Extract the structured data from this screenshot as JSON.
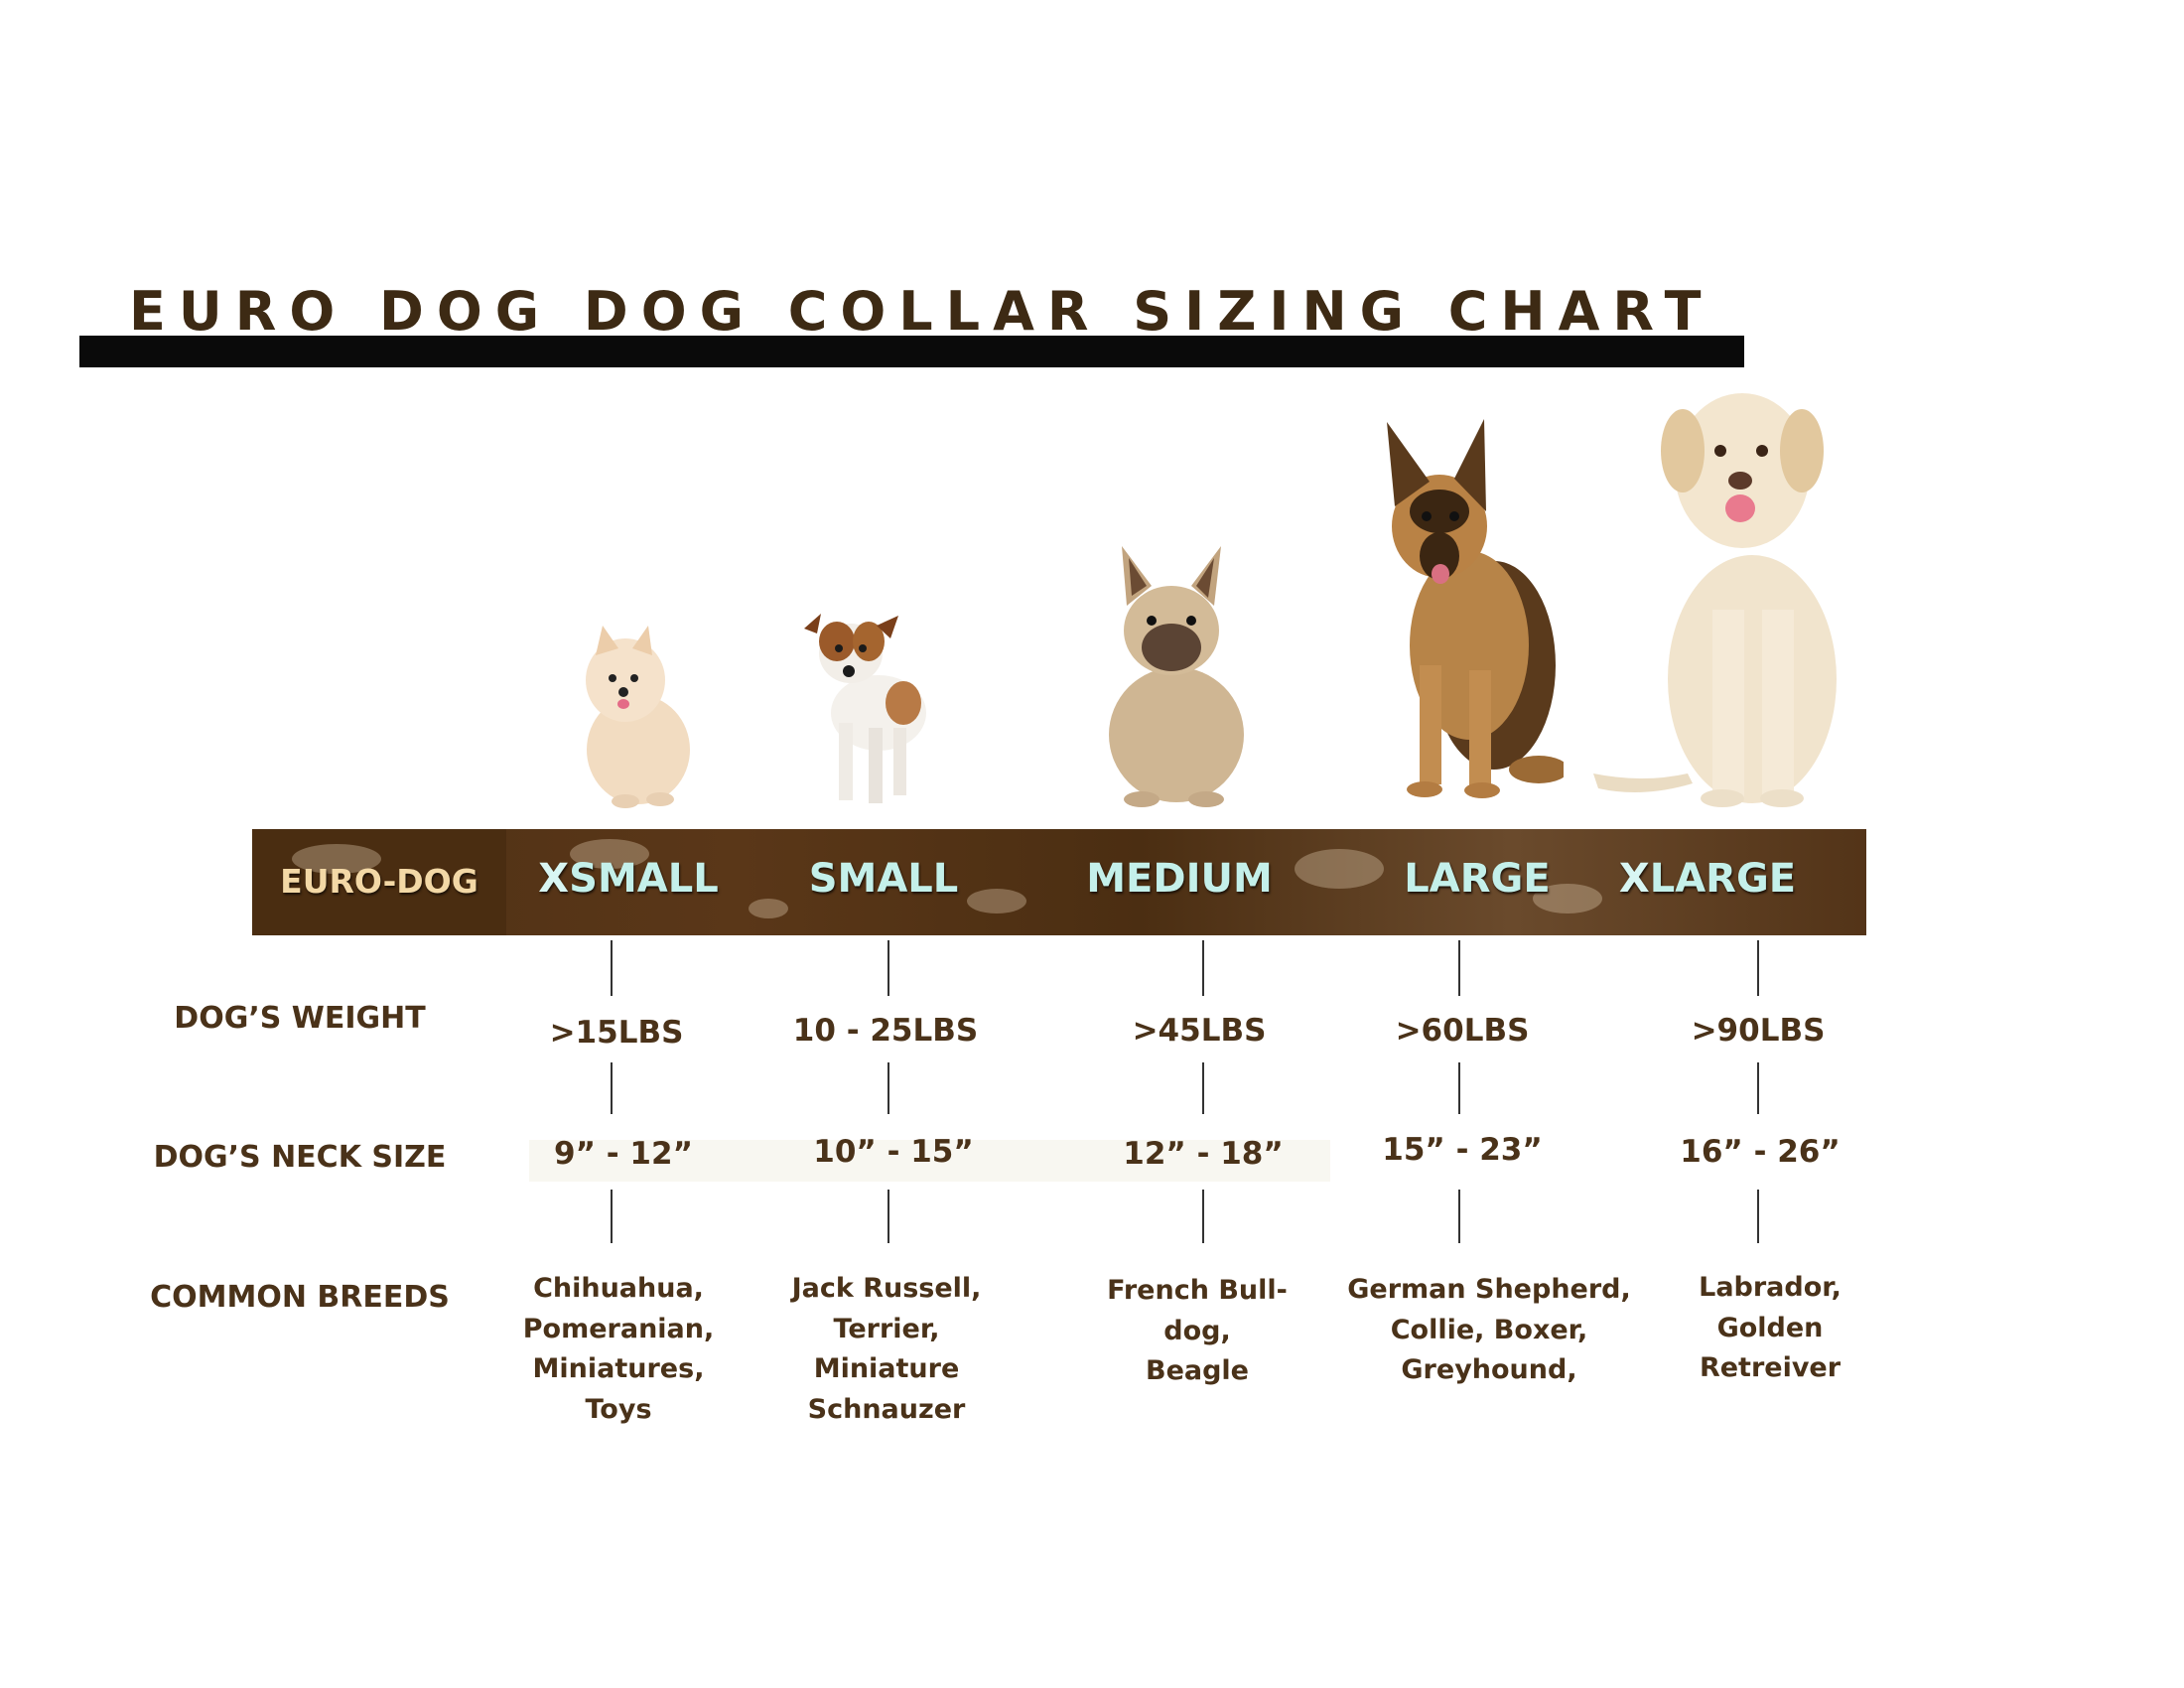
{
  "title": "EURO DOG DOG COLLAR SIZING CHART",
  "band": {
    "brand": "EURO-DOG",
    "sizes": [
      {
        "prefix": "X",
        "label": "SMALL"
      },
      {
        "prefix": "",
        "label": "SMALL"
      },
      {
        "prefix": "",
        "label": "MEDIUM"
      },
      {
        "prefix": "",
        "label": "LARGE"
      },
      {
        "prefix": "X",
        "label": "LARGE"
      }
    ]
  },
  "rows": {
    "weight": {
      "label": "DOG’S WEIGHT",
      "values": [
        ">15LBS",
        "10 - 25LBS",
        ">45LBS",
        ">60LBS",
        ">90LBS"
      ]
    },
    "neck": {
      "label": "DOG’S NECK SIZE",
      "values": [
        "9” - 12”",
        "10” - 15”",
        "12” - 18”",
        "15” - 23”",
        "16” - 26”"
      ]
    },
    "breeds": {
      "label": "COMMON BREEDS",
      "values": [
        [
          "Chihuahua,",
          "Pomeranian,",
          "Miniatures,",
          "Toys"
        ],
        [
          "Jack Russell,",
          "Terrier,",
          "Miniature",
          "Schnauzer"
        ],
        [
          "French Bull-",
          "dog,",
          "Beagle"
        ],
        [
          "German Shepherd,",
          "Collie, Boxer,",
          "Greyhound,"
        ],
        [
          "Labrador,",
          "Golden",
          "Retreiver"
        ]
      ]
    }
  },
  "dogs": [
    "pomeranian-photo",
    "jack-russell-photo",
    "french-bulldog-photo",
    "german-shepherd-photo",
    "labrador-photo"
  ],
  "colors": {
    "text": "#4a3219",
    "band": "#4e3015",
    "band_text": "#c4f0ea",
    "brand_text": "#f3d8a6"
  }
}
